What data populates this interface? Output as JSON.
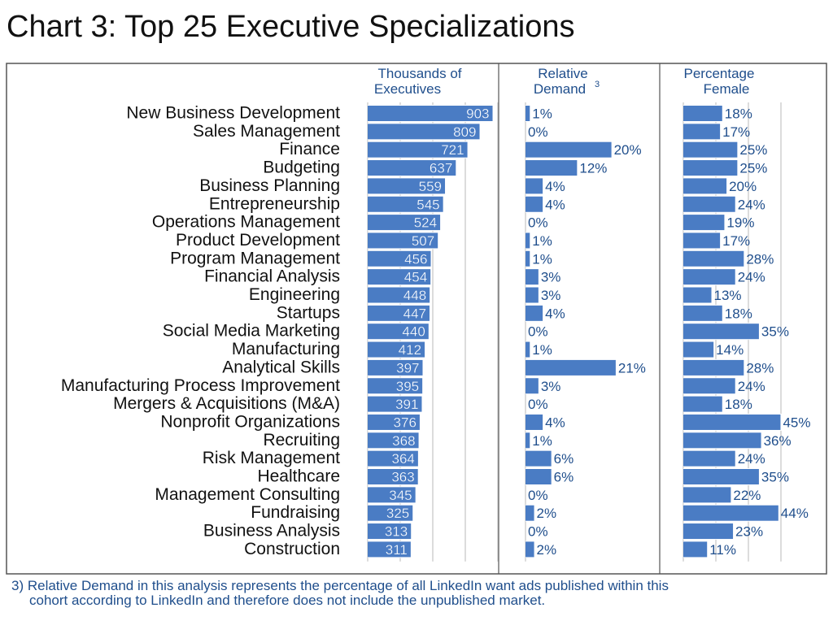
{
  "title": "Chart 3: Top 25 Executive Specializations",
  "footnote": {
    "line1": "3) Relative Demand in this analysis represents the percentage of all LinkedIn want ads published within this",
    "line2": "cohort according to LinkedIn and therefore does not include the unpublished market."
  },
  "colors": {
    "bar": "#4a7cc4",
    "text_blue": "#1f4e8c",
    "grid": "#b8b8b8",
    "frame": "#555555"
  },
  "chart_data": [
    {
      "type": "bar",
      "orientation": "horizontal",
      "title_line1": "Thousands of",
      "title_line2": "Executives",
      "categories": [
        "New Business Development",
        "Sales Management",
        "Finance",
        "Budgeting",
        "Business Planning",
        "Entrepreneurship",
        "Operations Management",
        "Product Development",
        "Program Management",
        "Financial Analysis",
        "Engineering",
        "Startups",
        "Social Media Marketing",
        "Manufacturing",
        "Analytical Skills",
        "Manufacturing Process Improvement",
        "Mergers & Acquisitions (M&A)",
        "Nonprofit Organizations",
        "Recruiting",
        "Risk Management",
        "Healthcare",
        "Management Consulting",
        "Fundraising",
        "Business Analysis",
        "Construction"
      ],
      "values": [
        903,
        809,
        721,
        637,
        559,
        545,
        524,
        507,
        456,
        454,
        448,
        447,
        440,
        412,
        397,
        395,
        391,
        376,
        368,
        364,
        363,
        345,
        325,
        313,
        311
      ],
      "xlim": [
        0,
        1000
      ],
      "grid": true
    },
    {
      "type": "bar",
      "orientation": "horizontal",
      "title_line1": "Relative",
      "title_line2": "Demand",
      "title_sup": "3",
      "values": [
        1,
        0,
        20,
        12,
        4,
        4,
        0,
        1,
        1,
        3,
        3,
        4,
        0,
        1,
        21,
        3,
        0,
        4,
        1,
        6,
        6,
        0,
        2,
        0,
        2
      ],
      "labels": [
        "1%",
        "0%",
        "20%",
        "12%",
        "4%",
        "4%",
        "0%",
        "1%",
        "1%",
        "3%",
        "3%",
        "4%",
        "0%",
        "1%",
        "21%",
        "3%",
        "0%",
        "4%",
        "1%",
        "6%",
        "6%",
        "0%",
        "2%",
        "0%",
        "2%"
      ],
      "xlim": [
        0,
        25
      ],
      "grid": false
    },
    {
      "type": "bar",
      "orientation": "horizontal",
      "title_line1": "Percentage",
      "title_line2": "Female",
      "values": [
        18,
        17,
        25,
        25,
        20,
        24,
        19,
        17,
        28,
        24,
        13,
        18,
        35,
        14,
        28,
        24,
        18,
        45,
        36,
        24,
        35,
        22,
        44,
        23,
        11
      ],
      "labels": [
        "18%",
        "17%",
        "25%",
        "25%",
        "20%",
        "24%",
        "19%",
        "17%",
        "28%",
        "24%",
        "13%",
        "18%",
        "35%",
        "14%",
        "28%",
        "24%",
        "18%",
        "45%",
        "36%",
        "24%",
        "35%",
        "22%",
        "44%",
        "23%",
        "11%"
      ],
      "xlim": [
        0,
        55
      ],
      "grid": true
    }
  ]
}
